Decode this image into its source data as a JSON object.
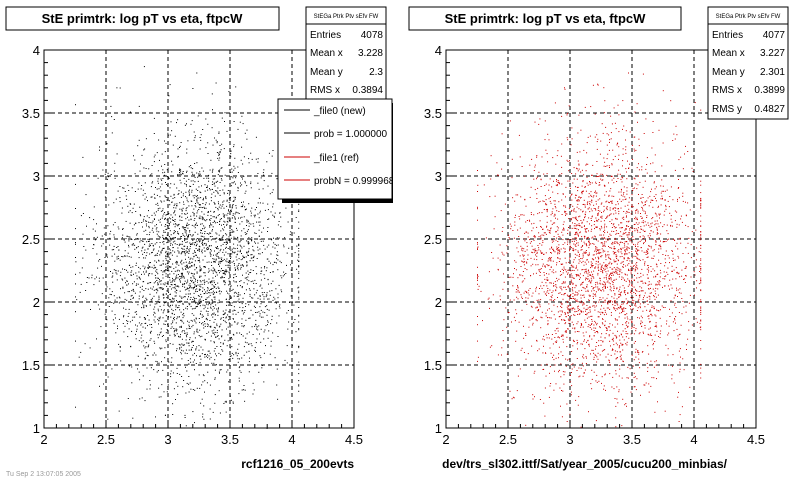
{
  "footer_text": "Tu Sep 2 13:07:05 2005",
  "chart_data": [
    {
      "type": "scatter",
      "title": "StE primtrk: log pT vs eta, ftpcW",
      "xlabel": "rcf1216_05_200evts",
      "ylabel": "",
      "xlim": [
        2,
        4.5
      ],
      "ylim": [
        1,
        4
      ],
      "x_ticks": [
        "2",
        "2.5",
        "3",
        "3.5",
        "4",
        "4.5"
      ],
      "y_ticks": [
        "1",
        "1.5",
        "2",
        "2.5",
        "3",
        "3.5",
        "4"
      ],
      "grid": true,
      "point_color": "#000000",
      "distribution": {
        "x_mean": 3.228,
        "x_rms": 0.3894,
        "y_mean": 2.3,
        "y_rms": 0.48,
        "n_points": 4078
      },
      "stats": {
        "header": "StEGa Ptrk Ptv sEfv FW",
        "rows": [
          {
            "label": "Entries",
            "value": "4078"
          },
          {
            "label": "Mean x",
            "value": "3.228"
          },
          {
            "label": "Mean y",
            "value": "2.3"
          },
          {
            "label": "RMS x",
            "value": "0.3894"
          }
        ]
      },
      "legend": {
        "placement": "top-right",
        "entries": [
          {
            "label": "_file0 (new)",
            "color": "#000000"
          },
          {
            "label": "prob = 1.000000",
            "color": "#000000"
          },
          {
            "label": "_file1 (ref)",
            "color": "#cc0000"
          },
          {
            "label": "probN = 0.999968",
            "color": "#cc0000"
          }
        ]
      }
    },
    {
      "type": "scatter",
      "title": "StE primtrk: log pT vs eta, ftpcW",
      "xlabel": "dev/trs_sl302.ittf/Sat/year_2005/cucu200_minbias/",
      "ylabel": "",
      "xlim": [
        2,
        4.5
      ],
      "ylim": [
        1,
        4
      ],
      "x_ticks": [
        "2",
        "2.5",
        "3",
        "3.5",
        "4",
        "4.5"
      ],
      "y_ticks": [
        "1",
        "1.5",
        "2",
        "2.5",
        "3",
        "3.5",
        "4"
      ],
      "grid": true,
      "point_color": "#cc0000",
      "distribution": {
        "x_mean": 3.227,
        "x_rms": 0.3899,
        "y_mean": 2.301,
        "y_rms": 0.4827,
        "n_points": 4077
      },
      "stats": {
        "header": "StEGa Ptrk Ptv sEfv FW",
        "rows": [
          {
            "label": "Entries",
            "value": "4077"
          },
          {
            "label": "Mean x",
            "value": "3.227"
          },
          {
            "label": "Mean y",
            "value": "2.301"
          },
          {
            "label": "RMS x",
            "value": "0.3899"
          },
          {
            "label": "RMS y",
            "value": "0.4827"
          }
        ]
      }
    }
  ]
}
